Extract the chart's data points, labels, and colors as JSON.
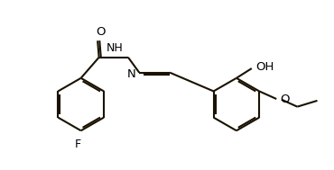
{
  "bg_color": "#ffffff",
  "line_color": "#1a1200",
  "text_color": "#000000",
  "lw": 1.5,
  "fig_w": 3.7,
  "fig_h": 1.89,
  "dpi": 100,
  "xlim": [
    -0.5,
    10.5
  ],
  "ylim": [
    -0.3,
    5.8
  ]
}
